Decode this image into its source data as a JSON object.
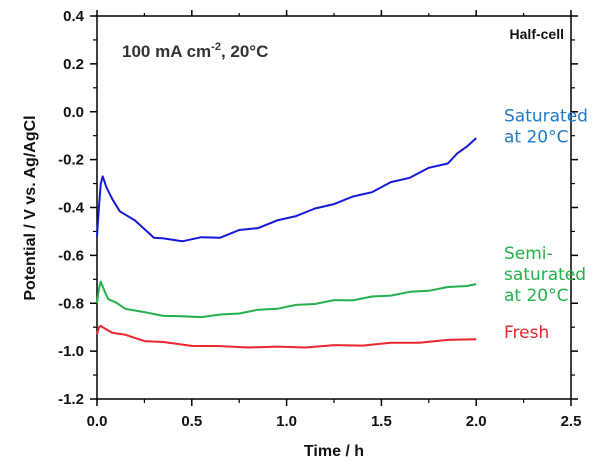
{
  "chart_data": {
    "type": "line",
    "title": "",
    "annotations": {
      "condition_main": "100 mA cm",
      "condition_sup": "-2",
      "condition_tail": ", 20°C",
      "corner": "Half-cell"
    },
    "xlabel": "Time / h",
    "ylabel": "Potential / V vs. Ag/AgCl",
    "xlim": [
      0,
      2.5
    ],
    "ylim": [
      -1.2,
      0.4
    ],
    "xticks": [
      "0.0",
      "0.5",
      "1.0",
      "1.5",
      "2.0",
      "2.5"
    ],
    "yticks": [
      "0.4",
      "0.2",
      "0.0",
      "-0.2",
      "-0.4",
      "-0.6",
      "-0.8",
      "-1.0",
      "-1.2"
    ],
    "grid": false,
    "legend": "direct labels at right end of each series",
    "series": [
      {
        "name_lines": [
          "Saturated",
          "at 20°C"
        ],
        "color": "#1418d6",
        "label_color": "#1e78c8",
        "x": [
          0.0,
          0.01,
          0.02,
          0.03,
          0.05,
          0.08,
          0.12,
          0.2,
          0.3,
          0.35,
          0.45,
          0.55,
          0.65,
          0.75,
          0.85,
          0.95,
          1.05,
          1.15,
          1.25,
          1.35,
          1.45,
          1.55,
          1.65,
          1.75,
          1.85,
          1.9,
          1.95,
          2.0
        ],
        "y": [
          -0.52,
          -0.4,
          -0.3,
          -0.27,
          -0.31,
          -0.37,
          -0.41,
          -0.46,
          -0.52,
          -0.535,
          -0.535,
          -0.53,
          -0.52,
          -0.5,
          -0.48,
          -0.46,
          -0.43,
          -0.41,
          -0.38,
          -0.36,
          -0.33,
          -0.3,
          -0.27,
          -0.24,
          -0.21,
          -0.18,
          -0.14,
          -0.11
        ]
      },
      {
        "name_lines": [
          "Semi-",
          "saturated",
          "at 20°C"
        ],
        "color": "#22b14c",
        "label_color": "#22b14c",
        "x": [
          0.0,
          0.01,
          0.02,
          0.04,
          0.06,
          0.1,
          0.15,
          0.25,
          0.35,
          0.45,
          0.55,
          0.65,
          0.75,
          0.85,
          0.95,
          1.05,
          1.15,
          1.25,
          1.35,
          1.45,
          1.55,
          1.65,
          1.75,
          1.85,
          1.95,
          2.0
        ],
        "y": [
          -0.8,
          -0.74,
          -0.71,
          -0.75,
          -0.78,
          -0.8,
          -0.82,
          -0.84,
          -0.85,
          -0.857,
          -0.855,
          -0.85,
          -0.84,
          -0.83,
          -0.82,
          -0.81,
          -0.8,
          -0.79,
          -0.785,
          -0.775,
          -0.765,
          -0.755,
          -0.745,
          -0.735,
          -0.725,
          -0.72
        ]
      },
      {
        "name_lines": [
          "Fresh"
        ],
        "color": "#e8262c",
        "label_color": "#e8262c",
        "x": [
          0.0,
          0.01,
          0.02,
          0.04,
          0.08,
          0.15,
          0.25,
          0.35,
          0.5,
          0.65,
          0.8,
          0.95,
          1.1,
          1.25,
          1.4,
          1.55,
          1.7,
          1.85,
          2.0
        ],
        "y": [
          -0.93,
          -0.9,
          -0.895,
          -0.905,
          -0.92,
          -0.935,
          -0.955,
          -0.965,
          -0.975,
          -0.982,
          -0.982,
          -0.984,
          -0.982,
          -0.978,
          -0.974,
          -0.968,
          -0.962,
          -0.956,
          -0.95
        ]
      }
    ]
  }
}
